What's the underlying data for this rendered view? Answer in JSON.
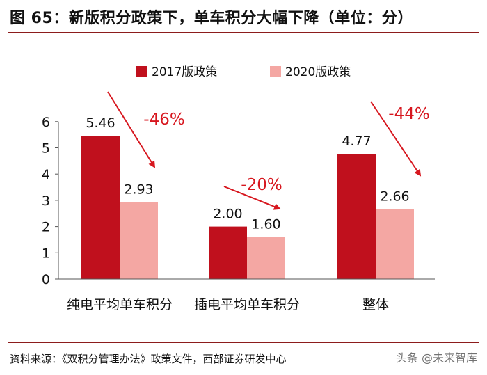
{
  "header": {
    "title": "图 65：新版积分政策下，单车积分大幅下降（单位：分）"
  },
  "footer": {
    "source": "资料来源：《双积分管理办法》政策文件，西部证券研发中心",
    "watermark": "头条 @未来智库"
  },
  "colors": {
    "series_2017": "#c0101d",
    "series_2020": "#f4a7a3",
    "arrow": "#d7171f",
    "rule": "#8c1c1c"
  },
  "chart_data": {
    "type": "bar",
    "categories": [
      "纯电平均单车积分",
      "插电平均单车积分",
      "整体"
    ],
    "series": [
      {
        "name": "2017版政策",
        "values": [
          5.46,
          2.0,
          4.77
        ],
        "labels": [
          "5.46",
          "2.00",
          "4.77"
        ]
      },
      {
        "name": "2020版政策",
        "values": [
          2.93,
          1.6,
          2.66
        ],
        "labels": [
          "2.93",
          "1.60",
          "2.66"
        ]
      }
    ],
    "ylim": [
      0,
      6
    ],
    "yticks": [
      "0",
      "1",
      "2",
      "3",
      "4",
      "5",
      "6"
    ],
    "change_annotations": [
      "-46%",
      "-20%",
      "-44%"
    ],
    "legend_position": "top",
    "grid": false,
    "title": "",
    "xlabel": "",
    "ylabel": ""
  }
}
